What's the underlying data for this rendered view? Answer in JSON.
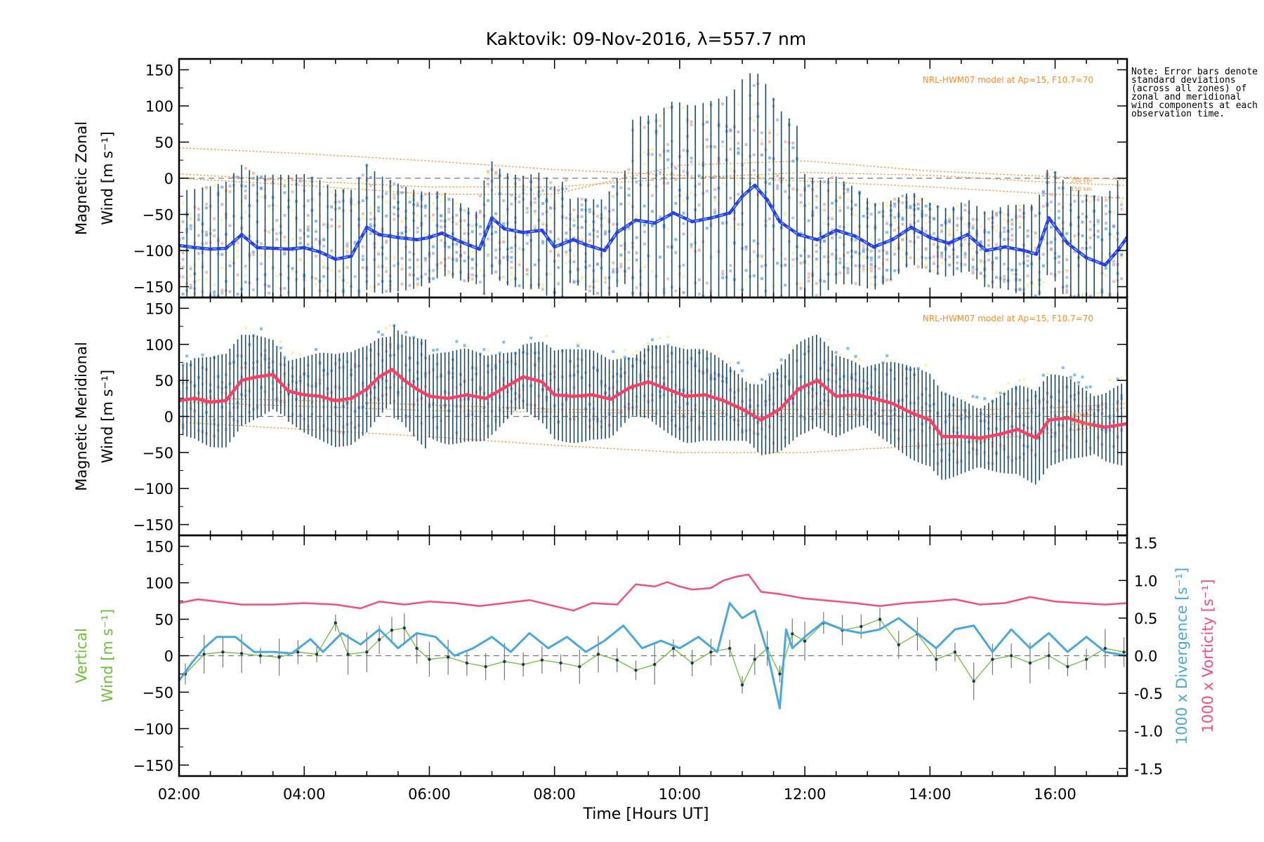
{
  "title": "Kaktovik: 09-Nov-2016, λ=557.7 nm",
  "note": "Note: Error bars denote standard deviations (across all zones) of zonal and meridional wind components at each observation time.",
  "model_label": "NRL-HWM07 model at Ap=15, F10.7=70",
  "model_small_labels": [
    "250 km",
    "150 km"
  ],
  "xlabel": "Time [Hours UT]",
  "colors": {
    "zonal_mean": "#2a3cf2",
    "zonal_fill": "#5aa8e8",
    "meridional_mean": "#ff3f63",
    "vertical": "#6fbf3a",
    "divergence": "#4aa8dc",
    "vorticity": "#f4507c",
    "errorbar": "#1b4a6a",
    "model": "#ff8c2a",
    "scatter_yellow": "#f4f0a0",
    "scatter_purple": "#b0a8d8",
    "scatter_pink": "#f5a898"
  },
  "chart_data": [
    {
      "type": "line",
      "panel": "zonal",
      "ylabel": [
        "Magnetic Zonal",
        "Wind [m s⁻¹]"
      ],
      "xlim": [
        2.0,
        17.15
      ],
      "ylim": [
        -165,
        165
      ],
      "xticks": [
        "02:00",
        "04:00",
        "06:00",
        "08:00",
        "10:00",
        "12:00",
        "14:00",
        "16:00"
      ],
      "yticks": [
        150,
        100,
        50,
        0,
        -50,
        -100,
        -150
      ],
      "series": [
        {
          "x": [
            2.0,
            2.25,
            2.5,
            2.75,
            3.0,
            3.25,
            3.5,
            3.75,
            4.0,
            4.25,
            4.5,
            4.75,
            5.0,
            5.2,
            5.5,
            5.8,
            6.0,
            6.2,
            6.5,
            6.8,
            7.0,
            7.2,
            7.5,
            7.8,
            8.0,
            8.3,
            8.5,
            8.8,
            9.0,
            9.3,
            9.6,
            9.9,
            10.2,
            10.5,
            10.8,
            11.0,
            11.2,
            11.4,
            11.6,
            11.9,
            12.2,
            12.5,
            12.8,
            13.1,
            13.4,
            13.7,
            14.0,
            14.3,
            14.6,
            14.9,
            15.2,
            15.5,
            15.7,
            15.9,
            16.2,
            16.5,
            16.8,
            17.0,
            17.15
          ],
          "y": [
            -93,
            -96,
            -98,
            -97,
            -78,
            -96,
            -97,
            -98,
            -96,
            -102,
            -112,
            -108,
            -68,
            -78,
            -82,
            -85,
            -82,
            -76,
            -88,
            -98,
            -55,
            -70,
            -75,
            -72,
            -95,
            -85,
            -92,
            -100,
            -75,
            -58,
            -62,
            -48,
            -60,
            -55,
            -48,
            -25,
            -10,
            -30,
            -60,
            -78,
            -85,
            -72,
            -80,
            -95,
            -85,
            -68,
            -82,
            -90,
            -78,
            -100,
            -95,
            -100,
            -105,
            -55,
            -90,
            -110,
            -120,
            -100,
            -82
          ]
        }
      ],
      "model_curves": [
        {
          "x": [
            2.0,
            4.0,
            6.0,
            8.0,
            10.0,
            12.0,
            14.0,
            16.0,
            17.15
          ],
          "y": [
            42,
            34,
            24,
            12,
            4,
            -4,
            -12,
            -22,
            -28
          ]
        },
        {
          "x": [
            2.0,
            4.0,
            6.0,
            8.0,
            10.0,
            12.0,
            14.0,
            16.0,
            17.15
          ],
          "y": [
            6,
            -4,
            -12,
            -12,
            0,
            8,
            4,
            -6,
            -10
          ]
        },
        {
          "x": [
            2.0,
            4.0,
            6.0,
            8.0,
            10.0,
            12.0,
            14.0,
            16.0,
            17.15
          ],
          "y": [
            0,
            -10,
            -22,
            -22,
            18,
            24,
            10,
            2,
            -2
          ]
        }
      ]
    },
    {
      "type": "line",
      "panel": "meridional",
      "ylabel": [
        "Magnetic Meridional",
        "Wind [m s⁻¹]"
      ],
      "xlim": [
        2.0,
        17.15
      ],
      "ylim": [
        -165,
        165
      ],
      "xticks": [
        "02:00",
        "04:00",
        "06:00",
        "08:00",
        "10:00",
        "12:00",
        "14:00",
        "16:00"
      ],
      "yticks": [
        150,
        100,
        50,
        0,
        -50,
        -100,
        -150
      ],
      "series": [
        {
          "x": [
            2.0,
            2.25,
            2.5,
            2.75,
            3.0,
            3.25,
            3.5,
            3.75,
            4.0,
            4.25,
            4.5,
            4.75,
            5.0,
            5.2,
            5.4,
            5.6,
            5.8,
            6.0,
            6.3,
            6.6,
            6.9,
            7.2,
            7.5,
            7.8,
            8.0,
            8.3,
            8.6,
            8.9,
            9.2,
            9.5,
            9.8,
            10.1,
            10.4,
            10.7,
            11.0,
            11.3,
            11.6,
            11.9,
            12.2,
            12.5,
            12.8,
            13.1,
            13.4,
            13.7,
            14.0,
            14.2,
            14.5,
            14.8,
            15.1,
            15.4,
            15.7,
            15.9,
            16.2,
            16.5,
            16.8,
            17.15
          ],
          "y": [
            22,
            25,
            20,
            22,
            50,
            55,
            58,
            35,
            30,
            28,
            22,
            25,
            38,
            55,
            65,
            50,
            38,
            28,
            25,
            30,
            25,
            40,
            55,
            48,
            30,
            28,
            30,
            24,
            40,
            48,
            38,
            28,
            30,
            22,
            10,
            -5,
            10,
            38,
            50,
            28,
            30,
            25,
            18,
            5,
            -5,
            -28,
            -28,
            -30,
            -25,
            -18,
            -30,
            -5,
            -2,
            -10,
            -15,
            -10
          ]
        }
      ],
      "model_curves": [
        {
          "x": [
            2.0,
            4.0,
            6.0,
            8.0,
            10.0,
            12.0,
            14.0,
            16.0,
            17.15
          ],
          "y": [
            -8,
            -18,
            -28,
            -40,
            -50,
            -50,
            -40,
            -22,
            -10
          ]
        },
        {
          "x": [
            2.0,
            4.0,
            6.0,
            8.0,
            10.0,
            12.0,
            14.0,
            16.0,
            17.15
          ],
          "y": [
            20,
            14,
            8,
            6,
            4,
            4,
            0,
            6,
            12
          ]
        },
        {
          "x": [
            2.0,
            4.0,
            6.0,
            8.0,
            10.0,
            12.0,
            14.0,
            16.0,
            17.15
          ],
          "y": [
            26,
            22,
            16,
            10,
            8,
            10,
            8,
            12,
            18
          ]
        }
      ]
    },
    {
      "type": "line",
      "panel": "vertical",
      "ylabel": [
        "Vertical",
        "Wind [m s⁻¹]"
      ],
      "right_labels": [
        "1000 x Divergence [s⁻¹]",
        "1000 x Vorticity [s⁻¹]"
      ],
      "xlim": [
        2.0,
        17.15
      ],
      "ylim": [
        -165,
        165
      ],
      "y2lim": [
        -1.6,
        1.6
      ],
      "xticks": [
        "02:00",
        "04:00",
        "06:00",
        "08:00",
        "10:00",
        "12:00",
        "14:00",
        "16:00"
      ],
      "yticks": [
        150,
        100,
        50,
        0,
        -50,
        -100,
        -150
      ],
      "y2ticks": [
        "1.5",
        "1.0",
        "0.5",
        "0.0",
        "-0.5",
        "-1.0",
        "-1.5"
      ],
      "series": [
        {
          "name": "Vertical",
          "x": [
            2.1,
            2.4,
            2.7,
            3.0,
            3.3,
            3.6,
            3.9,
            4.2,
            4.5,
            4.7,
            5.0,
            5.2,
            5.4,
            5.6,
            5.8,
            6.0,
            6.3,
            6.6,
            6.9,
            7.2,
            7.5,
            7.8,
            8.1,
            8.4,
            8.7,
            9.0,
            9.3,
            9.6,
            9.9,
            10.2,
            10.5,
            10.8,
            11.0,
            11.2,
            11.4,
            11.6,
            11.8,
            12.0,
            12.3,
            12.6,
            12.9,
            13.2,
            13.5,
            13.8,
            14.1,
            14.4,
            14.7,
            15.0,
            15.3,
            15.6,
            15.9,
            16.2,
            16.5,
            16.8,
            17.1
          ],
          "y": [
            -25,
            2,
            5,
            3,
            0,
            -2,
            5,
            2,
            45,
            2,
            5,
            22,
            35,
            38,
            10,
            -5,
            -2,
            -10,
            -15,
            -8,
            -12,
            -6,
            -10,
            -15,
            2,
            -6,
            -20,
            -12,
            10,
            -10,
            5,
            10,
            -40,
            -5,
            10,
            -25,
            30,
            20,
            45,
            35,
            40,
            50,
            15,
            30,
            -5,
            5,
            -35,
            -5,
            0,
            -10,
            0,
            -15,
            -5,
            10,
            5
          ]
        },
        {
          "name": "1000 x Divergence",
          "x": [
            2.0,
            2.2,
            2.4,
            2.6,
            2.9,
            3.2,
            3.5,
            3.8,
            4.1,
            4.3,
            4.6,
            4.9,
            5.2,
            5.5,
            5.8,
            6.1,
            6.4,
            6.7,
            7.0,
            7.3,
            7.6,
            7.9,
            8.2,
            8.5,
            8.8,
            9.1,
            9.4,
            9.7,
            10.0,
            10.3,
            10.6,
            10.8,
            11.0,
            11.2,
            11.4,
            11.6,
            11.7,
            11.8,
            12.0,
            12.3,
            12.6,
            12.9,
            13.2,
            13.5,
            13.8,
            14.1,
            14.4,
            14.7,
            15.0,
            15.3,
            15.6,
            15.9,
            16.2,
            16.5,
            16.8,
            17.15
          ],
          "y": [
            -0.33,
            -0.1,
            0.1,
            0.25,
            0.25,
            0.05,
            0.05,
            0.03,
            0.22,
            0.05,
            0.3,
            0.15,
            0.35,
            0.1,
            0.3,
            0.25,
            0.0,
            0.1,
            0.25,
            0.05,
            0.3,
            0.1,
            0.25,
            0.05,
            0.2,
            0.4,
            0.1,
            0.2,
            0.1,
            0.25,
            0.05,
            0.7,
            0.5,
            0.6,
            0.05,
            -0.7,
            0.35,
            0.1,
            0.25,
            0.45,
            0.35,
            0.3,
            0.35,
            0.5,
            0.3,
            0.1,
            0.35,
            0.4,
            0.05,
            0.35,
            0.1,
            0.3,
            0.05,
            0.25,
            0.05,
            0.0
          ]
        },
        {
          "name": "1000 x Vorticity",
          "x": [
            2.0,
            2.3,
            2.6,
            3.0,
            3.5,
            4.0,
            4.5,
            4.9,
            5.2,
            5.6,
            6.0,
            6.4,
            6.8,
            7.2,
            7.6,
            8.0,
            8.3,
            8.6,
            9.0,
            9.3,
            9.6,
            9.8,
            10.0,
            10.2,
            10.5,
            10.7,
            10.9,
            11.1,
            11.3,
            11.6,
            12.0,
            12.4,
            12.8,
            13.2,
            13.6,
            14.0,
            14.4,
            14.8,
            15.2,
            15.6,
            16.0,
            16.4,
            16.8,
            17.15
          ],
          "y": [
            0.7,
            0.75,
            0.72,
            0.68,
            0.68,
            0.7,
            0.68,
            0.63,
            0.72,
            0.68,
            0.72,
            0.7,
            0.66,
            0.7,
            0.74,
            0.66,
            0.6,
            0.7,
            0.68,
            0.95,
            0.92,
            0.98,
            0.92,
            0.88,
            0.9,
            1.0,
            1.05,
            1.08,
            0.85,
            0.82,
            0.76,
            0.73,
            0.7,
            0.66,
            0.7,
            0.72,
            0.75,
            0.68,
            0.7,
            0.78,
            0.72,
            0.7,
            0.68,
            0.7
          ]
        }
      ]
    }
  ]
}
